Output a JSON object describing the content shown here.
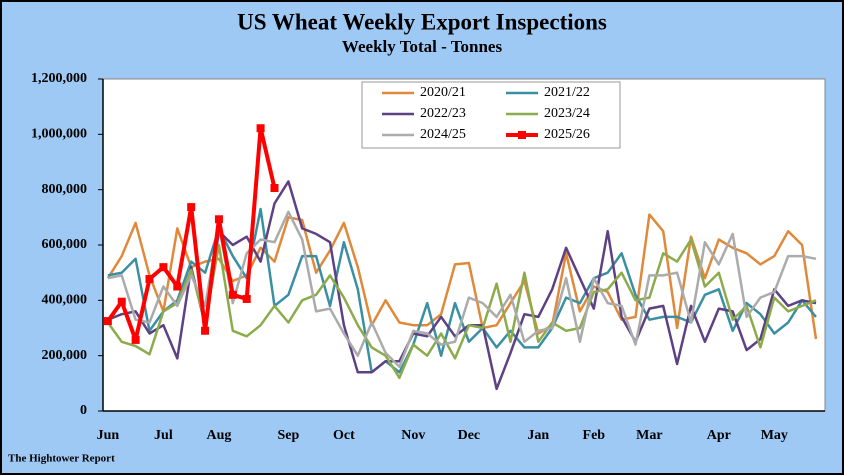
{
  "chart_data": {
    "type": "line",
    "title": "US Wheat Weekly Export Inspections",
    "subtitle": "Weekly Total - Tonnes",
    "source": "The Hightower Report",
    "categories": [
      "Jun",
      null,
      null,
      null,
      "Jul",
      null,
      null,
      null,
      "Aug",
      null,
      null,
      null,
      null,
      "Sep",
      null,
      null,
      null,
      "Oct",
      null,
      null,
      null,
      null,
      "Nov",
      null,
      null,
      null,
      "Dec",
      null,
      null,
      null,
      null,
      "Jan",
      null,
      null,
      null,
      "Feb",
      null,
      null,
      null,
      "Mar",
      null,
      null,
      null,
      null,
      "Apr",
      null,
      null,
      null,
      "May",
      null,
      null,
      null
    ],
    "ylim": [
      0,
      1200000
    ],
    "yticks": [
      0,
      {
        "value": 200000,
        "label": "200,000"
      },
      {
        "value": 400000,
        "label": "400,000"
      },
      {
        "value": 600000,
        "label": "600,000"
      },
      {
        "value": 800000,
        "label": "800,000"
      },
      {
        "value": 1000000,
        "label": "1,000,000"
      },
      {
        "value": 1200000,
        "label": "1,200,000"
      }
    ],
    "grid": false,
    "legend": "top",
    "series": [
      {
        "name": "2020/21",
        "color": "#e0893a",
        "values": [
          480000,
          560000,
          680000,
          490000,
          360000,
          660000,
          520000,
          540000,
          550000,
          470000,
          490000,
          590000,
          540000,
          700000,
          690000,
          500000,
          580000,
          680000,
          520000,
          310000,
          400000,
          320000,
          310000,
          310000,
          350000,
          530000,
          535000,
          300000,
          310000,
          390000,
          470000,
          280000,
          310000,
          570000,
          360000,
          450000,
          430000,
          330000,
          340000,
          710000,
          650000,
          300000,
          630000,
          480000,
          620000,
          590000,
          570000,
          530000,
          560000,
          650000,
          600000,
          260000
        ]
      },
      {
        "name": "2021/22",
        "color": "#3a8fa3",
        "values": [
          490000,
          500000,
          550000,
          290000,
          360000,
          400000,
          540000,
          500000,
          660000,
          560000,
          480000,
          730000,
          380000,
          420000,
          560000,
          560000,
          380000,
          610000,
          440000,
          140000,
          180000,
          140000,
          240000,
          390000,
          200000,
          390000,
          250000,
          300000,
          230000,
          290000,
          230000,
          230000,
          300000,
          410000,
          390000,
          480000,
          500000,
          570000,
          420000,
          330000,
          340000,
          340000,
          320000,
          420000,
          440000,
          290000,
          390000,
          350000,
          280000,
          320000,
          400000,
          340000
        ]
      },
      {
        "name": "2022/23",
        "color": "#5e4183",
        "values": [
          330000,
          350000,
          360000,
          280000,
          310000,
          190000,
          520000,
          310000,
          650000,
          600000,
          630000,
          540000,
          750000,
          830000,
          660000,
          640000,
          610000,
          310000,
          140000,
          140000,
          180000,
          180000,
          280000,
          270000,
          340000,
          270000,
          310000,
          310000,
          80000,
          210000,
          350000,
          340000,
          440000,
          590000,
          480000,
          370000,
          650000,
          340000,
          250000,
          370000,
          380000,
          170000,
          380000,
          250000,
          370000,
          360000,
          220000,
          260000,
          440000,
          380000,
          400000,
          390000
        ]
      },
      {
        "name": "2023/24",
        "color": "#8cab4c",
        "values": [
          320000,
          250000,
          235000,
          205000,
          360000,
          390000,
          510000,
          320000,
          600000,
          290000,
          270000,
          310000,
          380000,
          320000,
          400000,
          420000,
          490000,
          410000,
          310000,
          230000,
          200000,
          120000,
          240000,
          200000,
          280000,
          190000,
          310000,
          300000,
          460000,
          250000,
          500000,
          250000,
          320000,
          290000,
          300000,
          430000,
          440000,
          500000,
          400000,
          410000,
          570000,
          540000,
          620000,
          450000,
          500000,
          330000,
          380000,
          230000,
          410000,
          360000,
          380000,
          400000
        ]
      },
      {
        "name": "2024/25",
        "color": "#ababab",
        "values": [
          480000,
          490000,
          330000,
          320000,
          450000,
          380000,
          490000,
          380000,
          670000,
          390000,
          570000,
          620000,
          610000,
          720000,
          620000,
          360000,
          370000,
          280000,
          200000,
          320000,
          210000,
          160000,
          290000,
          280000,
          240000,
          250000,
          410000,
          390000,
          340000,
          420000,
          250000,
          290000,
          300000,
          480000,
          250000,
          480000,
          390000,
          380000,
          240000,
          490000,
          490000,
          500000,
          320000,
          610000,
          530000,
          640000,
          340000,
          410000,
          430000,
          560000,
          560000,
          550000
        ]
      },
      {
        "name": "2025/26",
        "color": "#ff0000",
        "marker": "square",
        "values": [
          325000,
          395000,
          257000,
          477000,
          520000,
          450000,
          737000,
          290000,
          693000,
          420000,
          405000,
          1022000,
          806000,
          null,
          null,
          null,
          null,
          null,
          null,
          null,
          null,
          null,
          null,
          null,
          null,
          null,
          null,
          null,
          null,
          null,
          null,
          null,
          null,
          null,
          null,
          null,
          null,
          null,
          null,
          null,
          null,
          null,
          null,
          null,
          null,
          null,
          null,
          null,
          null,
          null,
          null,
          null
        ]
      }
    ]
  }
}
